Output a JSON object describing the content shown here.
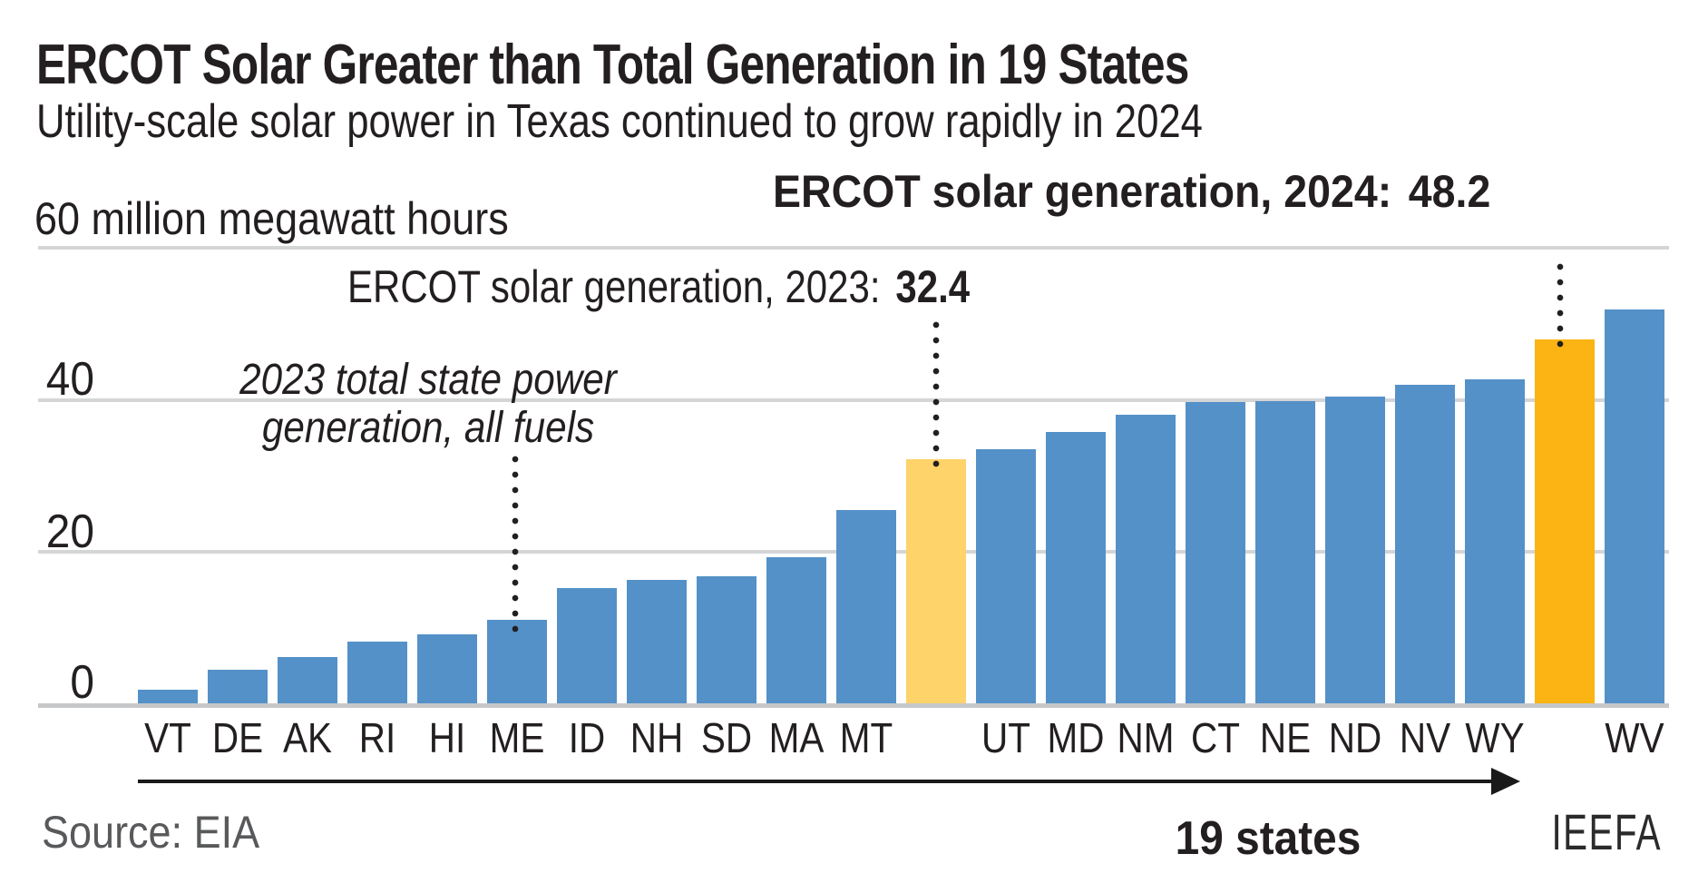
{
  "header": {
    "title": "ERCOT Solar Greater than Total Generation in 19 States",
    "subtitle": "Utility-scale solar power in Texas continued to grow rapidly in 2024"
  },
  "axis": {
    "unit_label": "60 million megawatt hours",
    "yticks": [
      "40",
      "20",
      "0"
    ]
  },
  "annotations": {
    "ercot_2024_label": "ERCOT solar generation, 2024:",
    "ercot_2024_value": "48.2",
    "ercot_2023_label": "ERCOT solar generation, 2023:",
    "ercot_2023_value": "32.4",
    "state_note_line1": "2023 total state power",
    "state_note_line2": "generation, all fuels"
  },
  "footer": {
    "source": "Source: EIA",
    "states_count": "19 states",
    "credit": "IEEFA"
  },
  "colors": {
    "state_bar": "#5491c8",
    "ercot_2023_bar": "#fdd36a",
    "ercot_2024_bar": "#fbb413",
    "gridline": "#d4d5d6",
    "text": "#231f20",
    "muted": "#58595b"
  },
  "chart_data": {
    "type": "bar",
    "title": "ERCOT Solar Greater than Total Generation in 19 States",
    "ylabel": "million megawatt hours",
    "ylim": [
      0,
      60
    ],
    "gridlines": [
      0,
      20,
      40,
      60
    ],
    "legend_position": "none",
    "grid": true,
    "bars": [
      {
        "label": "VT",
        "value": 2.0,
        "kind": "state"
      },
      {
        "label": "DE",
        "value": 4.7,
        "kind": "state"
      },
      {
        "label": "AK",
        "value": 6.3,
        "kind": "state"
      },
      {
        "label": "RI",
        "value": 8.4,
        "kind": "state"
      },
      {
        "label": "HI",
        "value": 9.3,
        "kind": "state"
      },
      {
        "label": "ME",
        "value": 11.2,
        "kind": "state"
      },
      {
        "label": "ID",
        "value": 15.4,
        "kind": "state"
      },
      {
        "label": "NH",
        "value": 16.5,
        "kind": "state"
      },
      {
        "label": "SD",
        "value": 17.0,
        "kind": "state"
      },
      {
        "label": "MA",
        "value": 19.5,
        "kind": "state"
      },
      {
        "label": "MT",
        "value": 25.7,
        "kind": "state"
      },
      {
        "label": "",
        "value": 32.4,
        "kind": "ercot2023",
        "name": "ercot-2023"
      },
      {
        "label": "UT",
        "value": 33.7,
        "kind": "state"
      },
      {
        "label": "MD",
        "value": 36.0,
        "kind": "state"
      },
      {
        "label": "NM",
        "value": 38.3,
        "kind": "state"
      },
      {
        "label": "CT",
        "value": 39.9,
        "kind": "state"
      },
      {
        "label": "NE",
        "value": 40.1,
        "kind": "state"
      },
      {
        "label": "ND",
        "value": 40.7,
        "kind": "state"
      },
      {
        "label": "NV",
        "value": 42.2,
        "kind": "state"
      },
      {
        "label": "WY",
        "value": 42.9,
        "kind": "state"
      },
      {
        "label": "",
        "value": 48.2,
        "kind": "ercot2024",
        "name": "ercot-2024"
      },
      {
        "label": "WV",
        "value": 52.1,
        "kind": "state"
      }
    ]
  }
}
